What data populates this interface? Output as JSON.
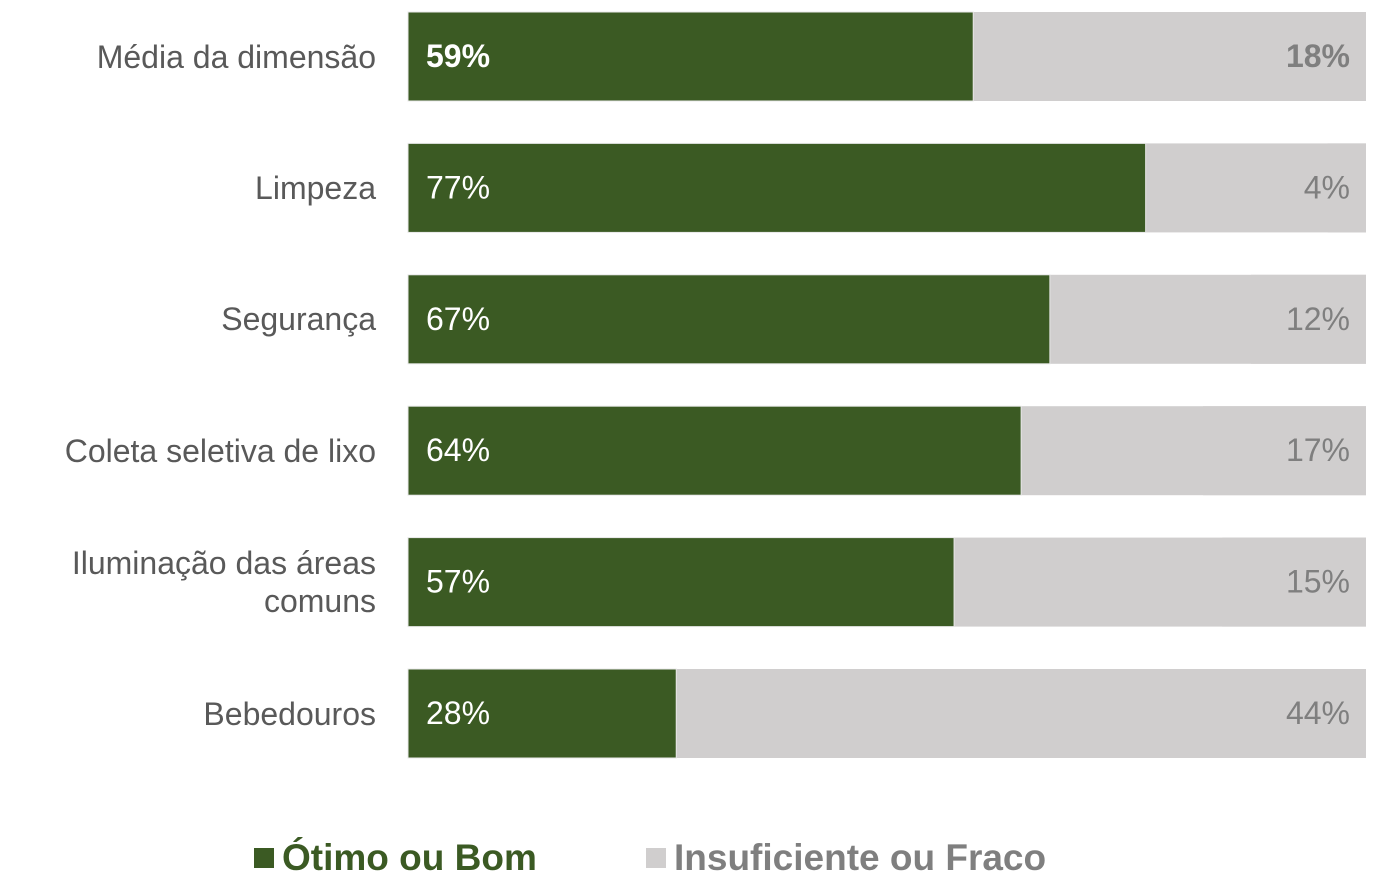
{
  "chart_data": {
    "type": "bar",
    "orientation": "horizontal",
    "stacked": true,
    "categories": [
      "Média da dimensão",
      "Limpeza",
      "Segurança",
      "Coleta seletiva de lixo",
      "Iluminação das áreas comuns",
      "Bebedouros"
    ],
    "series": [
      {
        "name": "Ótimo ou Bom",
        "color": "#3b5a23",
        "values": [
          59,
          77,
          67,
          64,
          57,
          28
        ],
        "value_labels": [
          "59%",
          "77%",
          "67%",
          "64%",
          "57%",
          "28%"
        ]
      },
      {
        "name": "Insuficiente ou Fraco",
        "color": "#d0cece",
        "values": [
          18,
          4,
          12,
          17,
          15,
          44
        ],
        "value_labels": [
          "18%",
          "4%",
          "12%",
          "17%",
          "15%",
          "44%"
        ]
      }
    ],
    "xlim": [
      0,
      100
    ],
    "legend": "bottom"
  }
}
